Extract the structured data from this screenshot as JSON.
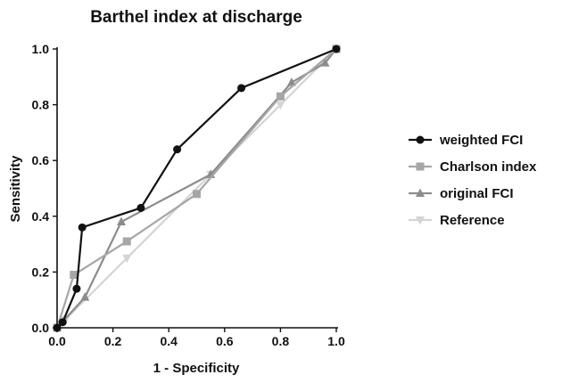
{
  "chart_data": {
    "type": "line",
    "title": "Barthel index at discharge",
    "xlabel": "1 - Specificity",
    "ylabel": "Sensitivity",
    "xlim": [
      0,
      1
    ],
    "ylim": [
      0,
      1
    ],
    "xticks": [
      "0.0",
      "0.2",
      "0.4",
      "0.6",
      "0.8",
      "1.0"
    ],
    "yticks": [
      "0.0",
      "0.2",
      "0.4",
      "0.6",
      "0.8",
      "1.0"
    ],
    "grid": false,
    "legend_position": "right",
    "series": [
      {
        "name": "weighted FCI",
        "color": "#111111",
        "marker": "circle",
        "x": [
          0,
          0.02,
          0.07,
          0.09,
          0.3,
          0.43,
          0.66,
          1.0
        ],
        "y": [
          0,
          0.02,
          0.14,
          0.36,
          0.43,
          0.64,
          0.86,
          1.0
        ]
      },
      {
        "name": "Charlson index",
        "color": "#a6a6a6",
        "marker": "square",
        "x": [
          0,
          0.06,
          0.25,
          0.5,
          0.8,
          1.0
        ],
        "y": [
          0,
          0.19,
          0.31,
          0.48,
          0.83,
          1.0
        ]
      },
      {
        "name": "original FCI",
        "color": "#8c8c8c",
        "marker": "triangle-up",
        "x": [
          0,
          0.1,
          0.23,
          0.55,
          0.84,
          0.96,
          1.0
        ],
        "y": [
          0,
          0.11,
          0.38,
          0.55,
          0.88,
          0.95,
          1.0
        ]
      },
      {
        "name": "Reference",
        "color": "#d4d4d4",
        "marker": "triangle-down",
        "x": [
          0,
          0.03,
          0.25,
          0.55,
          0.8,
          1.0
        ],
        "y": [
          0,
          0.03,
          0.25,
          0.55,
          0.8,
          1.0
        ]
      }
    ]
  }
}
